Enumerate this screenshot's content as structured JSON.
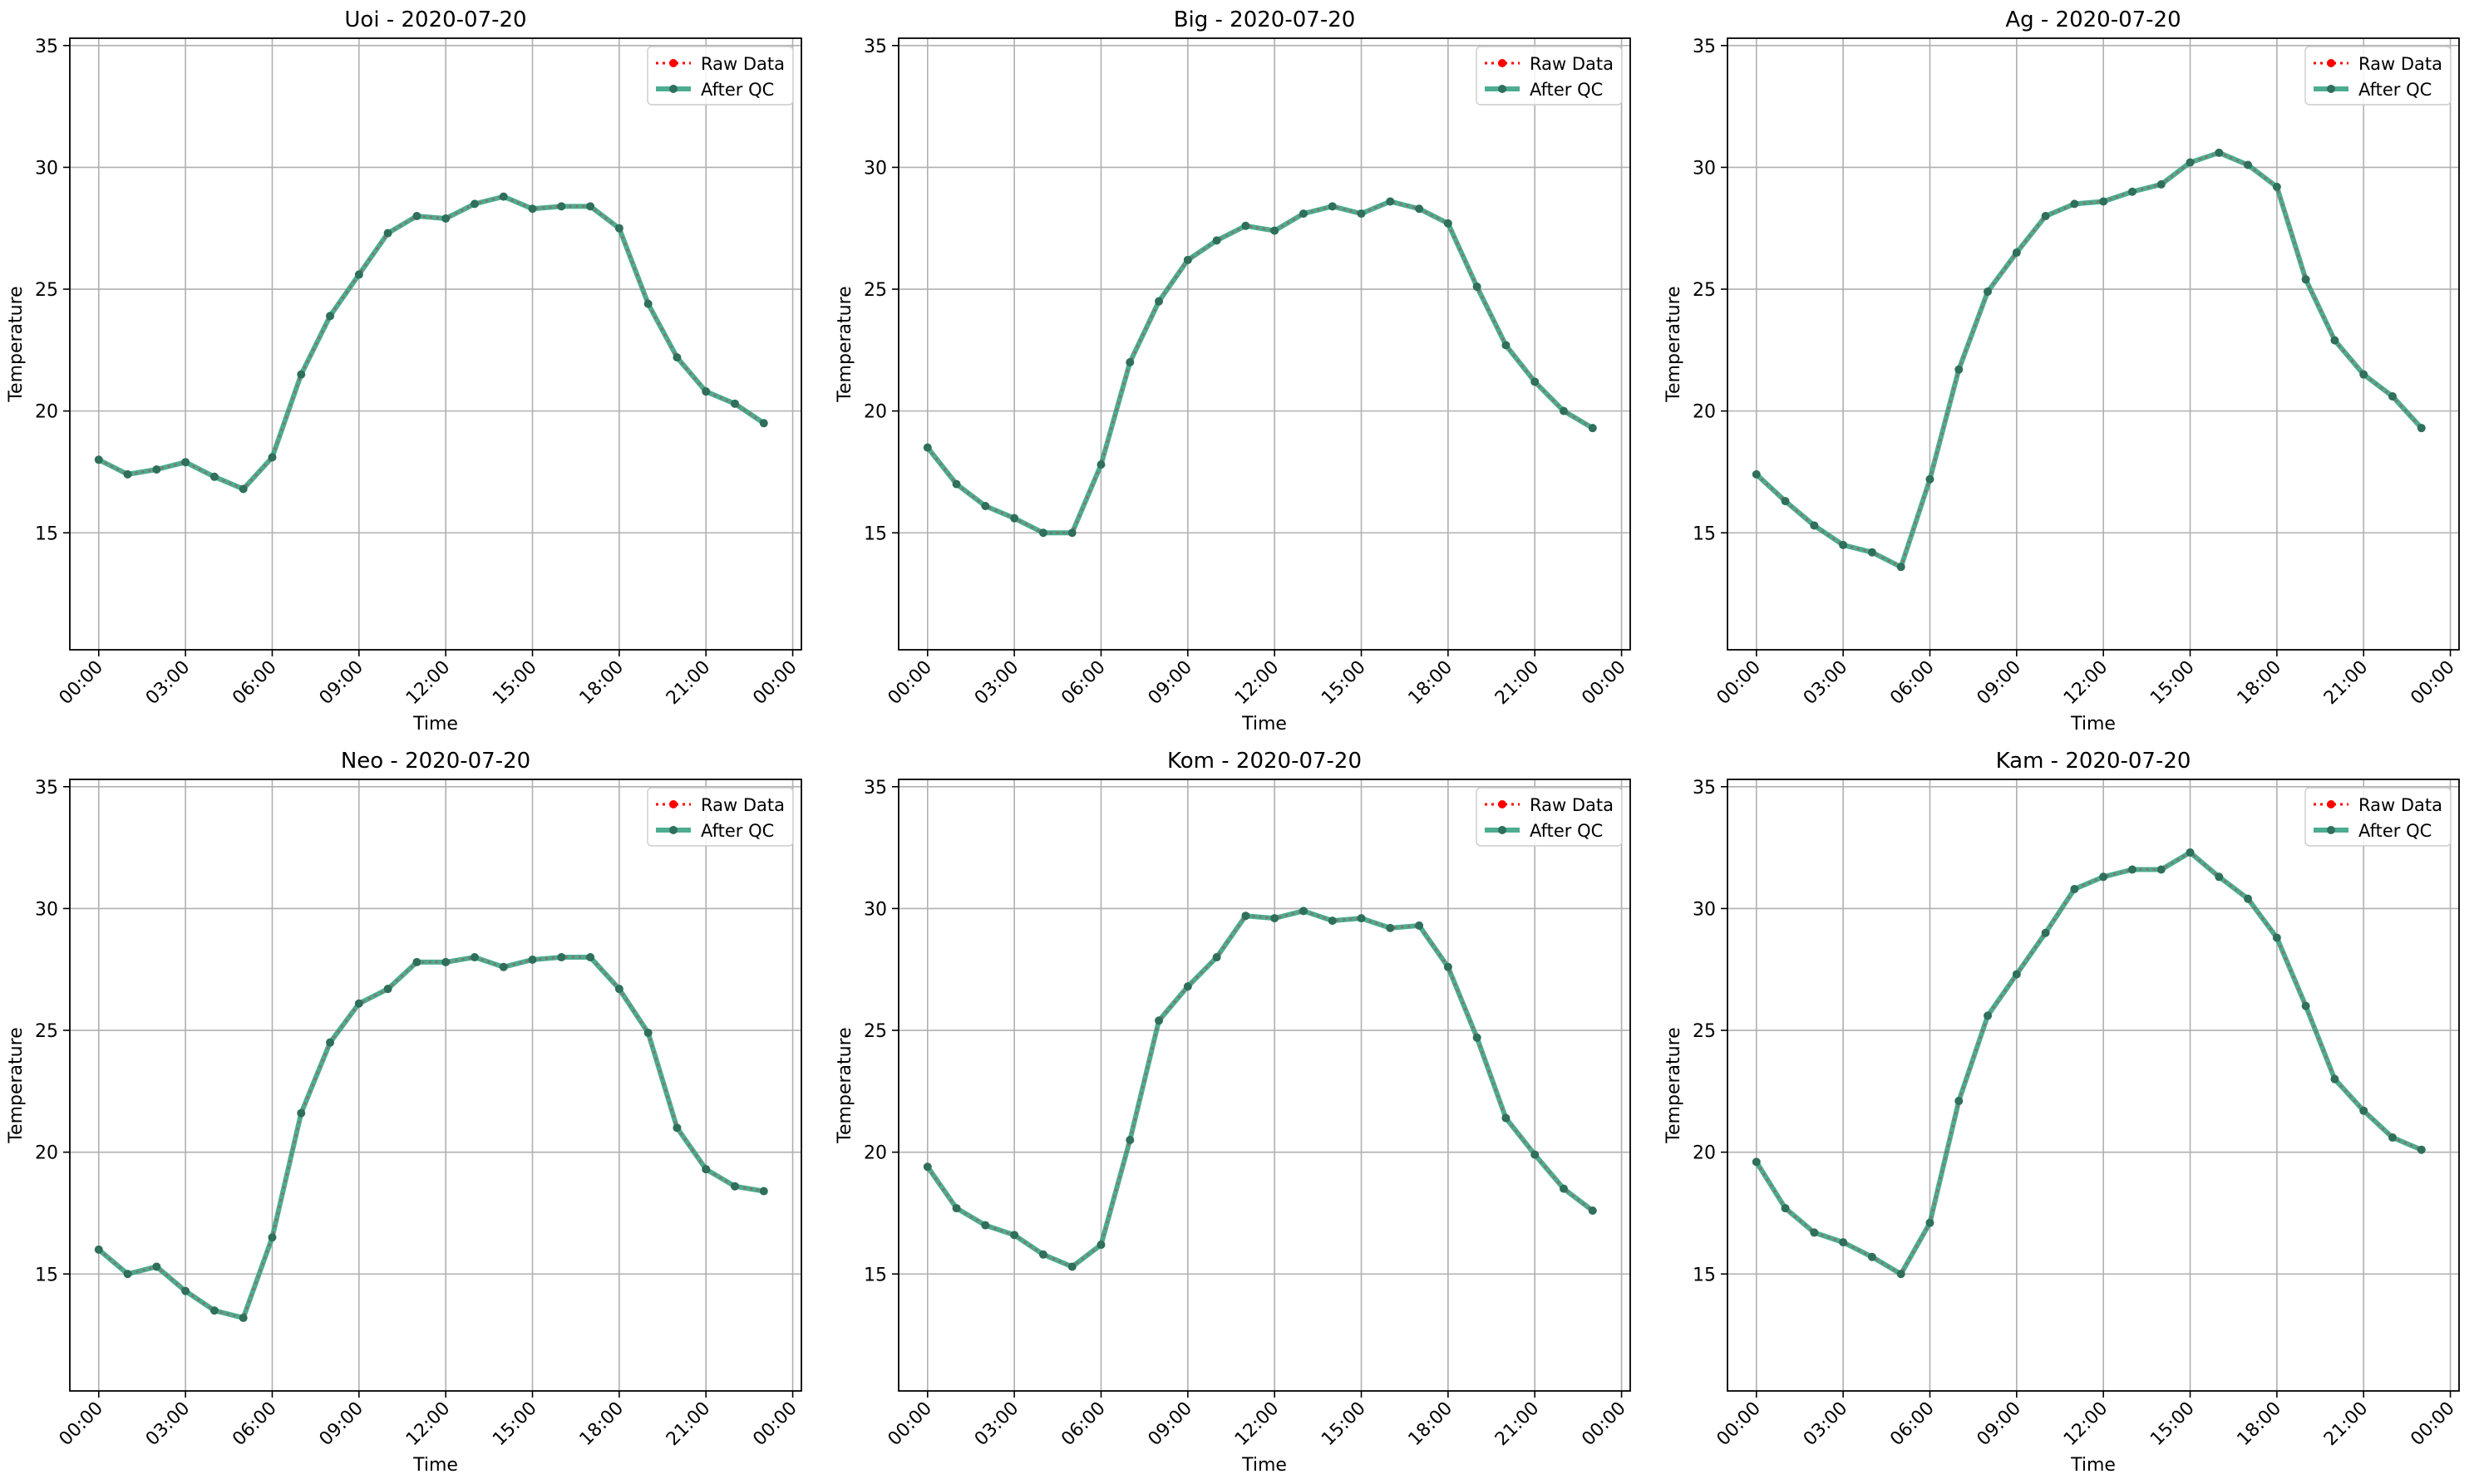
{
  "figure": {
    "colors": {
      "raw": "#ff0000",
      "qc_line": "#2e9e7e",
      "qc_marker": "#2f6f5c",
      "grid": "#b0b0b0",
      "axes": "#000000"
    },
    "icons": {
      "raw_legend": "red-dotted-line-with-dot-icon",
      "qc_legend": "green-solid-line-with-dot-icon"
    }
  },
  "chart_data": [
    {
      "type": "line",
      "title": "Uoi - 2020-07-20",
      "xlabel": "Time",
      "ylabel": "Temperature",
      "ylim": [
        10.2,
        35.3
      ],
      "xlim": [
        -1.0,
        24.3
      ],
      "yticks": [
        "15",
        "20",
        "25",
        "30",
        "35"
      ],
      "xticks": [
        "00:00",
        "03:00",
        "06:00",
        "09:00",
        "12:00",
        "15:00",
        "18:00",
        "21:00",
        "00:00"
      ],
      "grid": true,
      "legend": {
        "position": "top-right",
        "entries": [
          "Raw Data",
          "After QC"
        ]
      },
      "x": [
        0,
        1,
        2,
        3,
        4,
        5,
        6,
        7,
        8,
        9,
        10,
        11,
        12,
        13,
        14,
        15,
        16,
        17,
        18,
        19,
        20,
        21,
        22,
        23
      ],
      "series": [
        {
          "name": "Raw Data",
          "values": [
            18.0,
            17.4,
            17.6,
            17.9,
            17.3,
            16.8,
            18.1,
            21.5,
            23.9,
            25.6,
            27.3,
            28.0,
            27.9,
            28.5,
            28.8,
            28.3,
            28.4,
            28.4,
            27.5,
            24.4,
            22.2,
            20.8,
            20.3,
            19.5
          ]
        },
        {
          "name": "After QC",
          "values": [
            18.0,
            17.4,
            17.6,
            17.9,
            17.3,
            16.8,
            18.1,
            21.5,
            23.9,
            25.6,
            27.3,
            28.0,
            27.9,
            28.5,
            28.8,
            28.3,
            28.4,
            28.4,
            27.5,
            24.4,
            22.2,
            20.8,
            20.3,
            19.5
          ]
        }
      ]
    },
    {
      "type": "line",
      "title": "Big - 2020-07-20",
      "xlabel": "Time",
      "ylabel": "Temperature",
      "ylim": [
        10.2,
        35.3
      ],
      "xlim": [
        -1.0,
        24.3
      ],
      "yticks": [
        "15",
        "20",
        "25",
        "30",
        "35"
      ],
      "xticks": [
        "00:00",
        "03:00",
        "06:00",
        "09:00",
        "12:00",
        "15:00",
        "18:00",
        "21:00",
        "00:00"
      ],
      "grid": true,
      "legend": {
        "position": "top-right",
        "entries": [
          "Raw Data",
          "After QC"
        ]
      },
      "x": [
        0,
        1,
        2,
        3,
        4,
        5,
        6,
        7,
        8,
        9,
        10,
        11,
        12,
        13,
        14,
        15,
        16,
        17,
        18,
        19,
        20,
        21,
        22,
        23
      ],
      "series": [
        {
          "name": "Raw Data",
          "values": [
            18.5,
            17.0,
            16.1,
            15.6,
            15.0,
            15.0,
            17.8,
            22.0,
            24.5,
            26.2,
            27.0,
            27.6,
            27.4,
            28.1,
            28.4,
            28.1,
            28.6,
            28.3,
            27.7,
            25.1,
            22.7,
            21.2,
            20.0,
            19.3
          ]
        },
        {
          "name": "After QC",
          "values": [
            18.5,
            17.0,
            16.1,
            15.6,
            15.0,
            15.0,
            17.8,
            22.0,
            24.5,
            26.2,
            27.0,
            27.6,
            27.4,
            28.1,
            28.4,
            28.1,
            28.6,
            28.3,
            27.7,
            25.1,
            22.7,
            21.2,
            20.0,
            19.3
          ]
        }
      ]
    },
    {
      "type": "line",
      "title": "Ag - 2020-07-20",
      "xlabel": "Time",
      "ylabel": "Temperature",
      "ylim": [
        10.2,
        35.3
      ],
      "xlim": [
        -1.0,
        24.3
      ],
      "yticks": [
        "15",
        "20",
        "25",
        "30",
        "35"
      ],
      "xticks": [
        "00:00",
        "03:00",
        "06:00",
        "09:00",
        "12:00",
        "15:00",
        "18:00",
        "21:00",
        "00:00"
      ],
      "grid": true,
      "legend": {
        "position": "top-right",
        "entries": [
          "Raw Data",
          "After QC"
        ]
      },
      "x": [
        0,
        1,
        2,
        3,
        4,
        5,
        6,
        7,
        8,
        9,
        10,
        11,
        12,
        13,
        14,
        15,
        16,
        17,
        18,
        19,
        20,
        21,
        22,
        23
      ],
      "series": [
        {
          "name": "Raw Data",
          "values": [
            17.4,
            16.3,
            15.3,
            14.5,
            14.2,
            13.6,
            17.2,
            21.7,
            24.9,
            26.5,
            28.0,
            28.5,
            28.6,
            29.0,
            29.3,
            30.2,
            30.6,
            30.1,
            29.2,
            25.4,
            22.9,
            21.5,
            20.6,
            19.3
          ]
        },
        {
          "name": "After QC",
          "values": [
            17.4,
            16.3,
            15.3,
            14.5,
            14.2,
            13.6,
            17.2,
            21.7,
            24.9,
            26.5,
            28.0,
            28.5,
            28.6,
            29.0,
            29.3,
            30.2,
            30.6,
            30.1,
            29.2,
            25.4,
            22.9,
            21.5,
            20.6,
            19.3
          ]
        }
      ]
    },
    {
      "type": "line",
      "title": "Neo - 2020-07-20",
      "xlabel": "Time",
      "ylabel": "Temperature",
      "ylim": [
        10.2,
        35.3
      ],
      "xlim": [
        -1.0,
        24.3
      ],
      "yticks": [
        "15",
        "20",
        "25",
        "30",
        "35"
      ],
      "xticks": [
        "00:00",
        "03:00",
        "06:00",
        "09:00",
        "12:00",
        "15:00",
        "18:00",
        "21:00",
        "00:00"
      ],
      "grid": true,
      "legend": {
        "position": "top-right",
        "entries": [
          "Raw Data",
          "After QC"
        ]
      },
      "x": [
        0,
        1,
        2,
        3,
        4,
        5,
        6,
        7,
        8,
        9,
        10,
        11,
        12,
        13,
        14,
        15,
        16,
        17,
        18,
        19,
        20,
        21,
        22,
        23
      ],
      "series": [
        {
          "name": "Raw Data",
          "values": [
            16.0,
            15.0,
            15.3,
            14.3,
            13.5,
            13.2,
            16.5,
            21.6,
            24.5,
            26.1,
            26.7,
            27.8,
            27.8,
            28.0,
            27.6,
            27.9,
            28.0,
            28.0,
            26.7,
            24.9,
            21.0,
            19.3,
            18.6,
            18.4
          ]
        },
        {
          "name": "After QC",
          "values": [
            16.0,
            15.0,
            15.3,
            14.3,
            13.5,
            13.2,
            16.5,
            21.6,
            24.5,
            26.1,
            26.7,
            27.8,
            27.8,
            28.0,
            27.6,
            27.9,
            28.0,
            28.0,
            26.7,
            24.9,
            21.0,
            19.3,
            18.6,
            18.4
          ]
        }
      ]
    },
    {
      "type": "line",
      "title": "Kom - 2020-07-20",
      "xlabel": "Time",
      "ylabel": "Temperature",
      "ylim": [
        10.2,
        35.3
      ],
      "xlim": [
        -1.0,
        24.3
      ],
      "yticks": [
        "15",
        "20",
        "25",
        "30",
        "35"
      ],
      "xticks": [
        "00:00",
        "03:00",
        "06:00",
        "09:00",
        "12:00",
        "15:00",
        "18:00",
        "21:00",
        "00:00"
      ],
      "grid": true,
      "legend": {
        "position": "top-right",
        "entries": [
          "Raw Data",
          "After QC"
        ]
      },
      "x": [
        0,
        1,
        2,
        3,
        4,
        5,
        6,
        7,
        8,
        9,
        10,
        11,
        12,
        13,
        14,
        15,
        16,
        17,
        18,
        19,
        20,
        21,
        22,
        23
      ],
      "series": [
        {
          "name": "Raw Data",
          "values": [
            19.4,
            17.7,
            17.0,
            16.6,
            15.8,
            15.3,
            16.2,
            20.5,
            25.4,
            26.8,
            28.0,
            29.7,
            29.6,
            29.9,
            29.5,
            29.6,
            29.2,
            29.3,
            27.6,
            24.7,
            21.4,
            19.9,
            18.5,
            17.6
          ]
        },
        {
          "name": "After QC",
          "values": [
            19.4,
            17.7,
            17.0,
            16.6,
            15.8,
            15.3,
            16.2,
            20.5,
            25.4,
            26.8,
            28.0,
            29.7,
            29.6,
            29.9,
            29.5,
            29.6,
            29.2,
            29.3,
            27.6,
            24.7,
            21.4,
            19.9,
            18.5,
            17.6
          ]
        }
      ]
    },
    {
      "type": "line",
      "title": "Kam - 2020-07-20",
      "xlabel": "Time",
      "ylabel": "Temperature",
      "ylim": [
        10.2,
        35.3
      ],
      "xlim": [
        -1.0,
        24.3
      ],
      "yticks": [
        "15",
        "20",
        "25",
        "30",
        "35"
      ],
      "xticks": [
        "00:00",
        "03:00",
        "06:00",
        "09:00",
        "12:00",
        "15:00",
        "18:00",
        "21:00",
        "00:00"
      ],
      "grid": true,
      "legend": {
        "position": "top-right",
        "entries": [
          "Raw Data",
          "After QC"
        ]
      },
      "x": [
        0,
        1,
        2,
        3,
        4,
        5,
        6,
        7,
        8,
        9,
        10,
        11,
        12,
        13,
        14,
        15,
        16,
        17,
        18,
        19,
        20,
        21,
        22,
        23
      ],
      "series": [
        {
          "name": "Raw Data",
          "values": [
            19.6,
            17.7,
            16.7,
            16.3,
            15.7,
            15.0,
            17.1,
            22.1,
            25.6,
            27.3,
            29.0,
            30.8,
            31.3,
            31.6,
            31.6,
            32.3,
            31.3,
            30.4,
            28.8,
            26.0,
            23.0,
            21.7,
            20.6,
            20.1
          ]
        },
        {
          "name": "After QC",
          "values": [
            19.6,
            17.7,
            16.7,
            16.3,
            15.7,
            15.0,
            17.1,
            22.1,
            25.6,
            27.3,
            29.0,
            30.8,
            31.3,
            31.6,
            31.6,
            32.3,
            31.3,
            30.4,
            28.8,
            26.0,
            23.0,
            21.7,
            20.6,
            20.1
          ]
        }
      ]
    }
  ]
}
